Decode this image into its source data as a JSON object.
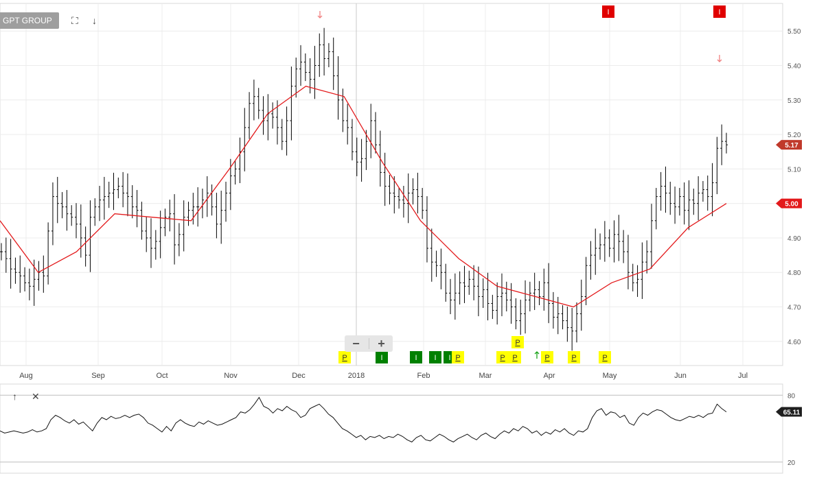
{
  "chart_data": [
    {
      "type": "ohlc",
      "title": "GPT GROUP",
      "price_axis": {
        "ticks": [
          4.6,
          4.7,
          4.8,
          4.9,
          5.0,
          5.1,
          5.2,
          5.3,
          5.4,
          5.5
        ],
        "ylim": [
          4.53,
          5.58
        ]
      },
      "x_labels": [
        "Aug",
        "Sep",
        "Oct",
        "Nov",
        "Dec",
        "2018",
        "Feb",
        "Mar",
        "Apr",
        "May",
        "Jun",
        "Jul"
      ],
      "last_price_label": "5.17",
      "ma_price_label": "5.00",
      "close_series_approx": [
        4.86,
        4.84,
        4.81,
        4.8,
        4.79,
        4.77,
        4.76,
        4.78,
        4.8,
        4.79,
        4.92,
        5.02,
        5.0,
        4.99,
        4.97,
        4.96,
        4.94,
        4.9,
        4.85,
        4.96,
        4.99,
        5.01,
        5.02,
        5.03,
        5.04,
        5.05,
        5.03,
        5.02,
        4.99,
        4.98,
        4.92,
        4.9,
        4.87,
        4.89,
        4.93,
        4.96,
        4.97,
        4.88,
        4.91,
        4.96,
        4.98,
        4.99,
        4.99,
        5.01,
        5.03,
        4.99,
        4.94,
        4.98,
        5.03,
        5.08,
        5.1,
        5.15,
        5.22,
        5.29,
        5.31,
        5.27,
        5.24,
        5.26,
        5.25,
        5.22,
        5.18,
        5.24,
        5.34,
        5.39,
        5.41,
        5.38,
        5.36,
        5.4,
        5.46,
        5.42,
        5.44,
        5.37,
        5.3,
        5.24,
        5.22,
        5.15,
        5.12,
        5.13,
        5.18,
        5.24,
        5.17,
        5.09,
        5.05,
        5.03,
        5.02,
        5.01,
        5.0,
        5.03,
        5.04,
        5.02,
        4.98,
        4.87,
        4.83,
        4.82,
        4.8,
        4.74,
        4.72,
        4.74,
        4.77,
        4.76,
        4.78,
        4.76,
        4.73,
        4.75,
        4.71,
        4.69,
        4.73,
        4.74,
        4.72,
        4.7,
        4.66,
        4.68,
        4.72,
        4.74,
        4.75,
        4.73,
        4.77,
        4.71,
        4.67,
        4.68,
        4.66,
        4.64,
        4.63,
        4.68,
        4.73,
        4.82,
        4.85,
        4.87,
        4.88,
        4.9,
        4.87,
        4.91,
        4.89,
        4.86,
        4.8,
        4.77,
        4.78,
        4.83,
        4.86,
        4.95,
        5.02,
        5.05,
        5.03,
        5.0,
        4.99,
        5.02,
        4.98,
        5.01,
        5.0,
        5.03,
        5.04,
        5.02,
        5.06,
        5.16,
        5.18,
        5.17
      ],
      "moving_average": [
        {
          "date": "late Jul",
          "value": 4.95
        },
        {
          "date": "mid Aug",
          "value": 4.8
        },
        {
          "date": "early Sep",
          "value": 4.86
        },
        {
          "date": "late Sep",
          "value": 4.97
        },
        {
          "date": "mid Oct",
          "value": 4.96
        },
        {
          "date": "late Oct",
          "value": 4.95
        },
        {
          "date": "mid Nov",
          "value": 5.1
        },
        {
          "date": "early Dec",
          "value": 5.26
        },
        {
          "date": "late Dec",
          "value": 5.34
        },
        {
          "date": "early Jan",
          "value": 5.31
        },
        {
          "date": "late Jan",
          "value": 5.12
        },
        {
          "date": "mid Feb",
          "value": 4.95
        },
        {
          "date": "early Mar",
          "value": 4.84
        },
        {
          "date": "mid Mar",
          "value": 4.76
        },
        {
          "date": "early Apr",
          "value": 4.73
        },
        {
          "date": "late Apr",
          "value": 4.7
        },
        {
          "date": "mid May",
          "value": 4.77
        },
        {
          "date": "late May",
          "value": 4.81
        },
        {
          "date": "early Jun",
          "value": 4.93
        },
        {
          "date": "late Jun",
          "value": 5.0
        }
      ],
      "markers": [
        {
          "label": "P",
          "kind": "yellow",
          "date": "late Dec"
        },
        {
          "label": "I",
          "kind": "green",
          "date": "early Jan"
        },
        {
          "label": "I",
          "kind": "green",
          "date": "late Jan"
        },
        {
          "label": "I",
          "kind": "green",
          "date": "early Feb"
        },
        {
          "label": "I",
          "kind": "green",
          "date": "mid Feb"
        },
        {
          "label": "P",
          "kind": "yellow",
          "date": "mid Feb"
        },
        {
          "label": "P",
          "kind": "yellow",
          "date": "mid Mar"
        },
        {
          "label": "P",
          "kind": "yellow",
          "date": "mid Mar"
        },
        {
          "label": "P",
          "kind": "yellow",
          "date": "late Mar"
        },
        {
          "label": "P",
          "kind": "yellow",
          "date": "late Mar"
        },
        {
          "label": "P",
          "kind": "yellow",
          "date": "mid Apr"
        },
        {
          "label": "P",
          "kind": "yellow",
          "date": "late Apr"
        },
        {
          "label": "I",
          "kind": "red",
          "date": "early May"
        },
        {
          "label": "I",
          "kind": "red",
          "date": "mid Jun"
        }
      ]
    },
    {
      "type": "line",
      "ticks": [
        20,
        80
      ],
      "ylim": [
        10,
        90
      ],
      "last_value_label": "65.11",
      "values_approx": [
        48,
        46,
        47,
        48,
        47,
        46,
        47,
        49,
        47,
        48,
        50,
        58,
        62,
        60,
        57,
        55,
        58,
        54,
        56,
        52,
        48,
        55,
        60,
        58,
        61,
        59,
        60,
        62,
        60,
        62,
        63,
        60,
        55,
        53,
        50,
        47,
        52,
        48,
        55,
        58,
        55,
        53,
        52,
        56,
        54,
        57,
        55,
        53,
        54,
        56,
        58,
        60,
        65,
        64,
        67,
        72,
        78,
        70,
        68,
        64,
        68,
        66,
        70,
        67,
        65,
        60,
        62,
        68,
        70,
        72,
        68,
        63,
        60,
        55,
        50,
        48,
        45,
        42,
        44,
        40,
        43,
        42,
        44,
        41,
        43,
        42,
        45,
        43,
        40,
        38,
        42,
        44,
        40,
        39,
        42,
        45,
        43,
        40,
        38,
        41,
        43,
        45,
        42,
        40,
        44,
        46,
        43,
        41,
        45,
        48,
        46,
        50,
        48,
        52,
        50,
        46,
        48,
        44,
        47,
        45,
        49,
        47,
        50,
        46,
        44,
        48,
        47,
        50,
        60,
        66,
        68,
        62,
        65,
        64,
        60,
        62,
        55,
        53,
        60,
        64,
        62,
        65,
        67,
        66,
        63,
        60,
        58,
        57,
        59,
        61,
        60,
        62,
        60,
        63,
        64,
        72,
        68,
        65
      ]
    }
  ],
  "ui": {
    "ticker_button": "GPT GROUP",
    "fullscreen_icon": "fullscreen-icon",
    "download_icon": "download-icon",
    "move_up_icon": "arrow-up-icon",
    "close_icon": "close-icon",
    "zoom_out_label": "−",
    "zoom_in_label": "+"
  },
  "colors": {
    "price_bars": "#000000",
    "moving_average": "#e3191b",
    "last_price_tag": "#c0392b",
    "indicator_tag": "#1f1f1f",
    "marker_yellow": "#ffff00",
    "marker_green": "#008000",
    "marker_red": "#e00000",
    "arrow_down": "#f08080",
    "arrow_up": "#19a319",
    "grid": "#ececec"
  }
}
